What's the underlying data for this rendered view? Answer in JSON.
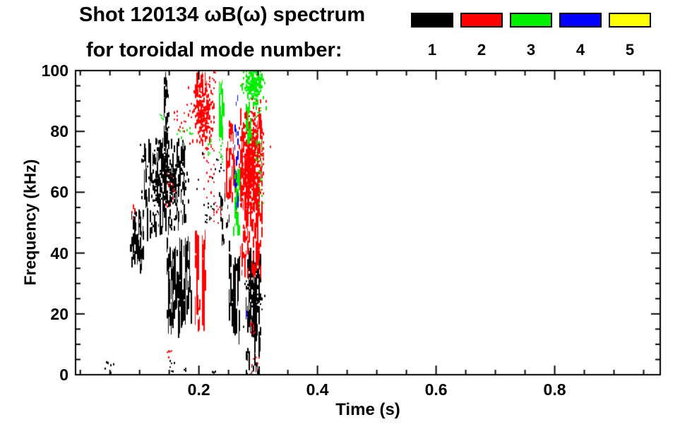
{
  "header": {
    "title_line1": "Shot 120134 ωB(ω) spectrum",
    "title_line2": "for toroidal mode number:"
  },
  "legend": {
    "entries": [
      {
        "label": "1",
        "color": "#000000"
      },
      {
        "label": "2",
        "color": "#ff0000"
      },
      {
        "label": "3",
        "color": "#00ee00"
      },
      {
        "label": "4",
        "color": "#0000ff"
      },
      {
        "label": "5",
        "color": "#ffff00"
      }
    ]
  },
  "chart_data": {
    "type": "scatter",
    "subtype": "mode-spectrogram-burst-plot",
    "title": "Shot 120134 ωB(ω) spectrum for toroidal mode number: 1 2 3 4 5",
    "xlabel": "Time (s)",
    "ylabel": "Frequency (kHz)",
    "xlim": [
      -0.008,
      0.978
    ],
    "ylim": [
      0,
      100
    ],
    "xticks": [
      0.2,
      0.4,
      0.6,
      0.8
    ],
    "xtick_labels": [
      "0.2",
      "0.4",
      "0.6",
      "0.8"
    ],
    "x_minor_step": 0.05,
    "yticks": [
      0,
      20,
      40,
      60,
      80,
      100
    ],
    "ytick_labels": [
      "0",
      "20",
      "40",
      "60",
      "80",
      "100"
    ],
    "y_minor_step": 5,
    "grid": false,
    "legend_position": "top-right",
    "axis_color": "#000000",
    "background": "#ffffff",
    "series": [
      {
        "name": "toroidal mode n=1",
        "mode": 1,
        "color": "#000000",
        "clusters": [
          {
            "type": "dots",
            "t": [
              0.04,
              0.058
            ],
            "f": [
              1,
              5
            ],
            "n": 8
          },
          {
            "type": "streaks",
            "t": [
              0.083,
              0.105
            ],
            "f": [
              36,
              44
            ],
            "n": 22,
            "len": [
              1,
              4
            ]
          },
          {
            "type": "streaks",
            "t": [
              0.085,
              0.106
            ],
            "f": [
              42,
              55
            ],
            "n": 45,
            "len": [
              1,
              5
            ]
          },
          {
            "type": "blob",
            "center": [
              0.142,
              64
            ],
            "sd": [
              0.016,
              5.5
            ],
            "n": 260
          },
          {
            "type": "streaks",
            "t": [
              0.106,
              0.176
            ],
            "f": [
              48,
              78
            ],
            "n": 170,
            "len": [
              1,
              6
            ]
          },
          {
            "type": "streaks",
            "t": [
              0.14,
              0.148
            ],
            "f": [
              70,
              100
            ],
            "n": 40,
            "len": [
              1,
              4
            ]
          },
          {
            "type": "streaks",
            "t": [
              0.145,
              0.186
            ],
            "f": [
              20,
              46
            ],
            "n": 110,
            "len": [
              2,
              9
            ]
          },
          {
            "type": "dots",
            "t": [
              0.148,
              0.158
            ],
            "f": [
              1,
              5
            ],
            "n": 6
          },
          {
            "type": "dots",
            "t": [
              0.172,
              0.178
            ],
            "f": [
              1,
              4
            ],
            "n": 4
          },
          {
            "type": "dots",
            "t": [
              0.205,
              0.226
            ],
            "f": [
              50,
              57
            ],
            "n": 18
          },
          {
            "type": "dots",
            "t": [
              0.222,
              0.24
            ],
            "f": [
              65,
              72
            ],
            "n": 10
          },
          {
            "type": "streaks",
            "t": [
              0.234,
              0.25
            ],
            "f": [
              44,
              62
            ],
            "n": 22,
            "len": [
              1,
              4
            ]
          },
          {
            "type": "streaks",
            "t": [
              0.25,
              0.268
            ],
            "f": [
              17,
              40
            ],
            "n": 45,
            "len": [
              2,
              10
            ]
          },
          {
            "type": "blob",
            "center": [
              0.292,
              28
            ],
            "sd": [
              0.006,
              5
            ],
            "n": 170
          },
          {
            "type": "streaks",
            "t": [
              0.28,
              0.303
            ],
            "f": [
              12,
              42
            ],
            "n": 60,
            "len": [
              2,
              8
            ]
          },
          {
            "type": "streaks",
            "t": [
              0.278,
              0.302
            ],
            "f": [
              0,
              9
            ],
            "n": 26,
            "len": [
              1,
              4
            ]
          },
          {
            "type": "dots",
            "t": [
              0.222,
              0.228
            ],
            "f": [
              1,
              3
            ],
            "n": 3
          }
        ]
      },
      {
        "name": "toroidal mode n=2",
        "mode": 2,
        "color": "#ff0000",
        "clusters": [
          {
            "type": "dots",
            "t": [
              0.084,
              0.091
            ],
            "f": [
              51,
              56
            ],
            "n": 8
          },
          {
            "type": "dots",
            "t": [
              0.146,
              0.153
            ],
            "f": [
              6,
              9
            ],
            "n": 6
          },
          {
            "type": "dots",
            "t": [
              0.143,
              0.158
            ],
            "f": [
              55,
              67
            ],
            "n": 14
          },
          {
            "type": "dots",
            "t": [
              0.155,
              0.176
            ],
            "f": [
              80,
              87
            ],
            "n": 14
          },
          {
            "type": "blob",
            "center": [
              0.207,
              86
            ],
            "sd": [
              0.009,
              5
            ],
            "n": 230
          },
          {
            "type": "streaks",
            "t": [
              0.193,
              0.212
            ],
            "f": [
              94,
              100
            ],
            "n": 26,
            "len": [
              1,
              4
            ]
          },
          {
            "type": "streaks",
            "t": [
              0.194,
              0.198
            ],
            "f": [
              23,
              48
            ],
            "n": 25,
            "len": [
              3,
              10
            ]
          },
          {
            "type": "streaks",
            "t": [
              0.205,
              0.209
            ],
            "f": [
              23,
              48
            ],
            "n": 25,
            "len": [
              3,
              10
            ]
          },
          {
            "type": "streaks",
            "t": [
              0.196,
              0.203
            ],
            "f": [
              16,
              25
            ],
            "n": 8,
            "len": [
              1,
              4
            ]
          },
          {
            "type": "dots",
            "t": [
              0.208,
              0.226
            ],
            "f": [
              58,
              76
            ],
            "n": 22
          },
          {
            "type": "dots",
            "t": [
              0.225,
              0.236
            ],
            "f": [
              50,
              57
            ],
            "n": 14
          },
          {
            "type": "dots",
            "t": [
              0.221,
              0.229
            ],
            "f": [
              95,
              100
            ],
            "n": 7
          },
          {
            "type": "streaks",
            "t": [
              0.244,
              0.251
            ],
            "f": [
              57,
              77
            ],
            "n": 16,
            "len": [
              1,
              4
            ]
          },
          {
            "type": "streaks",
            "t": [
              0.25,
              0.259
            ],
            "f": [
              60,
              84
            ],
            "n": 34,
            "len": [
              1,
              5
            ]
          },
          {
            "type": "blob",
            "center": [
              0.287,
              70
            ],
            "sd": [
              0.01,
              8
            ],
            "n": 420
          },
          {
            "type": "streaks",
            "t": [
              0.267,
              0.306
            ],
            "f": [
              53,
              88
            ],
            "n": 160,
            "len": [
              1,
              6
            ]
          },
          {
            "type": "streaks",
            "t": [
              0.27,
              0.305
            ],
            "f": [
              34,
              53
            ],
            "n": 60,
            "len": [
              1,
              5
            ]
          },
          {
            "type": "dots",
            "t": [
              0.283,
              0.296
            ],
            "f": [
              13,
              18
            ],
            "n": 11
          },
          {
            "type": "dots",
            "t": [
              0.288,
              0.301
            ],
            "f": [
              1,
              6
            ],
            "n": 7
          }
        ]
      },
      {
        "name": "toroidal mode n=3",
        "mode": 3,
        "color": "#00ee00",
        "clusters": [
          {
            "type": "blob",
            "center": [
              0.292,
              96
            ],
            "sd": [
              0.008,
              3.5
            ],
            "n": 200
          },
          {
            "type": "streaks",
            "t": [
              0.277,
              0.291
            ],
            "f": [
              78,
              91
            ],
            "n": 26,
            "len": [
              1,
              4
            ]
          },
          {
            "type": "streaks",
            "t": [
              0.232,
              0.241
            ],
            "f": [
              78,
              97
            ],
            "n": 34,
            "len": [
              1,
              5
            ]
          },
          {
            "type": "dots",
            "t": [
              0.233,
              0.239
            ],
            "f": [
              70,
              78
            ],
            "n": 10
          },
          {
            "type": "streaks",
            "t": [
              0.257,
              0.268
            ],
            "f": [
              47,
              68
            ],
            "n": 36,
            "len": [
              1,
              5
            ]
          },
          {
            "type": "dots",
            "t": [
              0.299,
              0.307
            ],
            "f": [
              55,
              68
            ],
            "n": 12
          },
          {
            "type": "dots",
            "t": [
              0.183,
              0.189
            ],
            "f": [
              79,
              82
            ],
            "n": 5
          },
          {
            "type": "dots",
            "t": [
              0.133,
              0.138
            ],
            "f": [
              83,
              86
            ],
            "n": 4
          },
          {
            "type": "dots",
            "t": [
              0.163,
              0.178
            ],
            "f": [
              78,
              81
            ],
            "n": 6
          },
          {
            "type": "dots",
            "t": [
              0.215,
              0.221
            ],
            "f": [
              72,
              78
            ],
            "n": 7
          },
          {
            "type": "dots",
            "t": [
              0.295,
              0.307
            ],
            "f": [
              68,
              88
            ],
            "n": 22
          }
        ]
      },
      {
        "name": "toroidal mode n=4",
        "mode": 4,
        "color": "#0000ff",
        "clusters": [
          {
            "type": "streaks",
            "t": [
              0.26,
              0.265
            ],
            "f": [
              55,
              100
            ],
            "n": 22,
            "len": [
              1,
              3
            ]
          },
          {
            "type": "dots",
            "t": [
              0.279,
              0.282
            ],
            "f": [
              19,
              22
            ],
            "n": 4
          }
        ]
      },
      {
        "name": "toroidal mode n=5",
        "mode": 5,
        "color": "#ffff00",
        "clusters": []
      }
    ]
  }
}
